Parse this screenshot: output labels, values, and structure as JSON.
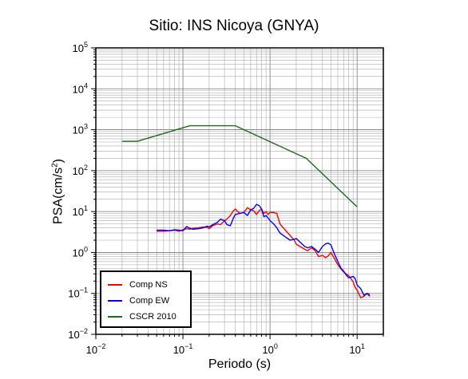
{
  "chart_data": {
    "type": "line",
    "title": "Sitio: INS Nicoya (GNYA)",
    "xlabel": "Periodo (s)",
    "ylabel": "PSA(cm/s",
    "ylabel_sup": "2",
    "ylabel_close": ")",
    "xscale": "log",
    "yscale": "log",
    "xlim": [
      0.01,
      20
    ],
    "ylim": [
      0.01,
      100000
    ],
    "grid": true,
    "legend_position": "bottom-left",
    "x_ticks": [
      {
        "value": 0.01,
        "base": "10",
        "exp": "−2"
      },
      {
        "value": 0.1,
        "base": "10",
        "exp": "−1"
      },
      {
        "value": 1,
        "base": "10",
        "exp": "0"
      },
      {
        "value": 10,
        "base": "10",
        "exp": "1"
      }
    ],
    "y_ticks": [
      {
        "value": 0.01,
        "base": "10",
        "exp": "−2"
      },
      {
        "value": 0.1,
        "base": "10",
        "exp": "−1"
      },
      {
        "value": 1,
        "base": "10",
        "exp": "0"
      },
      {
        "value": 10,
        "base": "10",
        "exp": "1"
      },
      {
        "value": 100,
        "base": "10",
        "exp": "2"
      },
      {
        "value": 1000,
        "base": "10",
        "exp": "3"
      },
      {
        "value": 10000,
        "base": "10",
        "exp": "4"
      },
      {
        "value": 100000,
        "base": "10",
        "exp": "5"
      }
    ],
    "series": [
      {
        "name": "Comp NS",
        "color": "#ff0000",
        "x": [
          0.05,
          0.06,
          0.07,
          0.08,
          0.09,
          0.1,
          0.11,
          0.12,
          0.13,
          0.15,
          0.17,
          0.19,
          0.2,
          0.22,
          0.25,
          0.27,
          0.3,
          0.32,
          0.35,
          0.38,
          0.4,
          0.45,
          0.5,
          0.55,
          0.6,
          0.65,
          0.7,
          0.75,
          0.8,
          0.85,
          0.9,
          0.95,
          1.0,
          1.1,
          1.2,
          1.3,
          1.5,
          1.7,
          1.9,
          2.0,
          2.2,
          2.5,
          2.7,
          3.0,
          3.3,
          3.6,
          4.0,
          4.3,
          4.6,
          5.0,
          5.5,
          6.0,
          6.5,
          7.0,
          7.5,
          8.0,
          8.5,
          9.0,
          9.5,
          10.0,
          11.0,
          12.0,
          13.0,
          14.0
        ],
        "y": [
          3.3,
          3.3,
          3.4,
          3.5,
          3.3,
          3.6,
          3.8,
          3.7,
          3.9,
          4.0,
          4.2,
          4.1,
          3.8,
          4.5,
          5.0,
          4.8,
          6.0,
          6.5,
          8.0,
          10.5,
          11.5,
          9.0,
          9.5,
          12.5,
          11.0,
          10.5,
          8.5,
          10.5,
          11.5,
          9.0,
          10.0,
          8.5,
          9.5,
          9.5,
          9.0,
          5.0,
          3.5,
          2.6,
          2.0,
          1.6,
          1.4,
          1.2,
          1.1,
          1.3,
          1.1,
          0.8,
          0.85,
          0.75,
          0.8,
          1.0,
          0.7,
          0.5,
          0.4,
          0.33,
          0.3,
          0.27,
          0.23,
          0.19,
          0.14,
          0.12,
          0.078,
          0.085,
          0.1,
          0.095
        ]
      },
      {
        "name": "Comp EW",
        "color": "#0000ff",
        "x": [
          0.05,
          0.06,
          0.07,
          0.08,
          0.09,
          0.1,
          0.11,
          0.12,
          0.13,
          0.15,
          0.17,
          0.19,
          0.2,
          0.22,
          0.25,
          0.27,
          0.3,
          0.32,
          0.35,
          0.38,
          0.4,
          0.45,
          0.5,
          0.55,
          0.6,
          0.65,
          0.7,
          0.75,
          0.8,
          0.85,
          0.9,
          0.95,
          1.0,
          1.1,
          1.2,
          1.3,
          1.5,
          1.7,
          1.9,
          2.0,
          2.2,
          2.5,
          2.7,
          3.0,
          3.3,
          3.6,
          4.0,
          4.3,
          4.6,
          5.0,
          5.5,
          6.0,
          6.5,
          7.0,
          7.5,
          8.0,
          8.5,
          9.0,
          9.5,
          10.0,
          11.0,
          12.0,
          13.0,
          14.0
        ],
        "y": [
          3.5,
          3.5,
          3.4,
          3.6,
          3.5,
          3.4,
          4.3,
          3.9,
          3.7,
          3.8,
          4.0,
          4.4,
          4.2,
          4.8,
          5.5,
          6.5,
          6.0,
          4.8,
          4.5,
          7.0,
          8.5,
          9.0,
          9.5,
          8.0,
          11.0,
          12.0,
          15.0,
          14.0,
          11.5,
          7.5,
          8.0,
          7.0,
          6.0,
          5.0,
          4.0,
          3.0,
          2.4,
          2.0,
          2.1,
          2.2,
          1.8,
          1.4,
          1.3,
          1.4,
          1.2,
          1.0,
          1.4,
          1.6,
          1.7,
          1.55,
          0.9,
          0.6,
          0.42,
          0.35,
          0.28,
          0.24,
          0.25,
          0.26,
          0.23,
          0.16,
          0.13,
          0.09,
          0.1,
          0.085
        ]
      },
      {
        "name": "CSCR 2010",
        "color": "#1a6b1a",
        "x": [
          0.02,
          0.03,
          0.12,
          0.4,
          2.6,
          10.0
        ],
        "y": [
          520,
          520,
          1250,
          1250,
          200,
          13
        ]
      }
    ]
  }
}
